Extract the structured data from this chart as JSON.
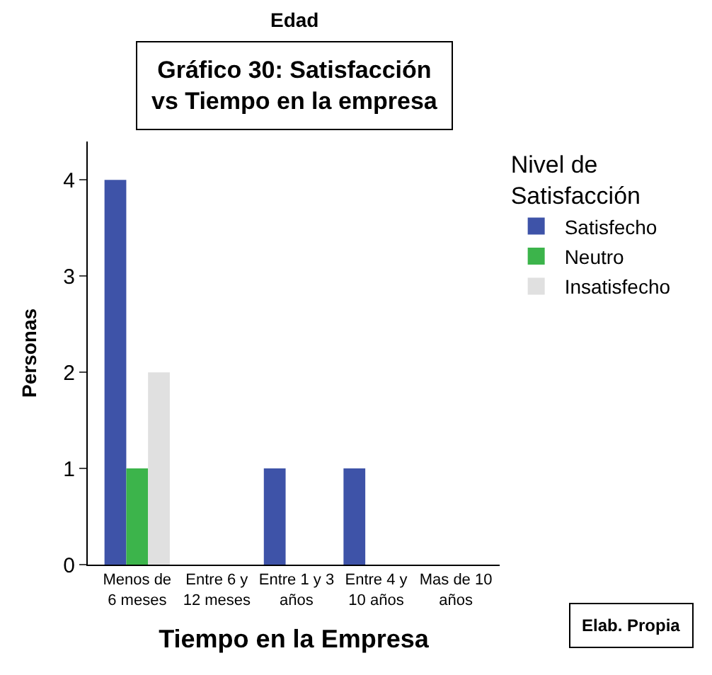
{
  "chart_data": {
    "type": "bar",
    "title": "Gráfico 30: Satisfacción\nvs Tiempo en la empresa",
    "subtitle": "Edad",
    "xlabel": "Tiempo en la Empresa",
    "ylabel": "Personas",
    "legend_title": "Nivel de\nSatisfacción",
    "categories": [
      "Menos de\n6 meses",
      "Entre 6 y\n12 meses",
      "Entre 1 y 3\naños",
      "Entre 4 y\n10 años",
      "Mas de 10\naños"
    ],
    "series": [
      {
        "name": "Satisfecho",
        "color": "#3e53a8",
        "values": [
          4,
          0,
          1,
          1,
          0
        ]
      },
      {
        "name": "Neutro",
        "color": "#3cb44b",
        "values": [
          1,
          0,
          0,
          0,
          0
        ]
      },
      {
        "name": "Insatisfecho",
        "color": "#e0e0e0",
        "values": [
          2,
          0,
          0,
          0,
          0
        ]
      }
    ],
    "ylim": [
      0,
      4.4
    ],
    "yticks": [
      0,
      1,
      2,
      3,
      4
    ],
    "legend": "top right",
    "annotations": [
      "Elab. Propia"
    ]
  }
}
